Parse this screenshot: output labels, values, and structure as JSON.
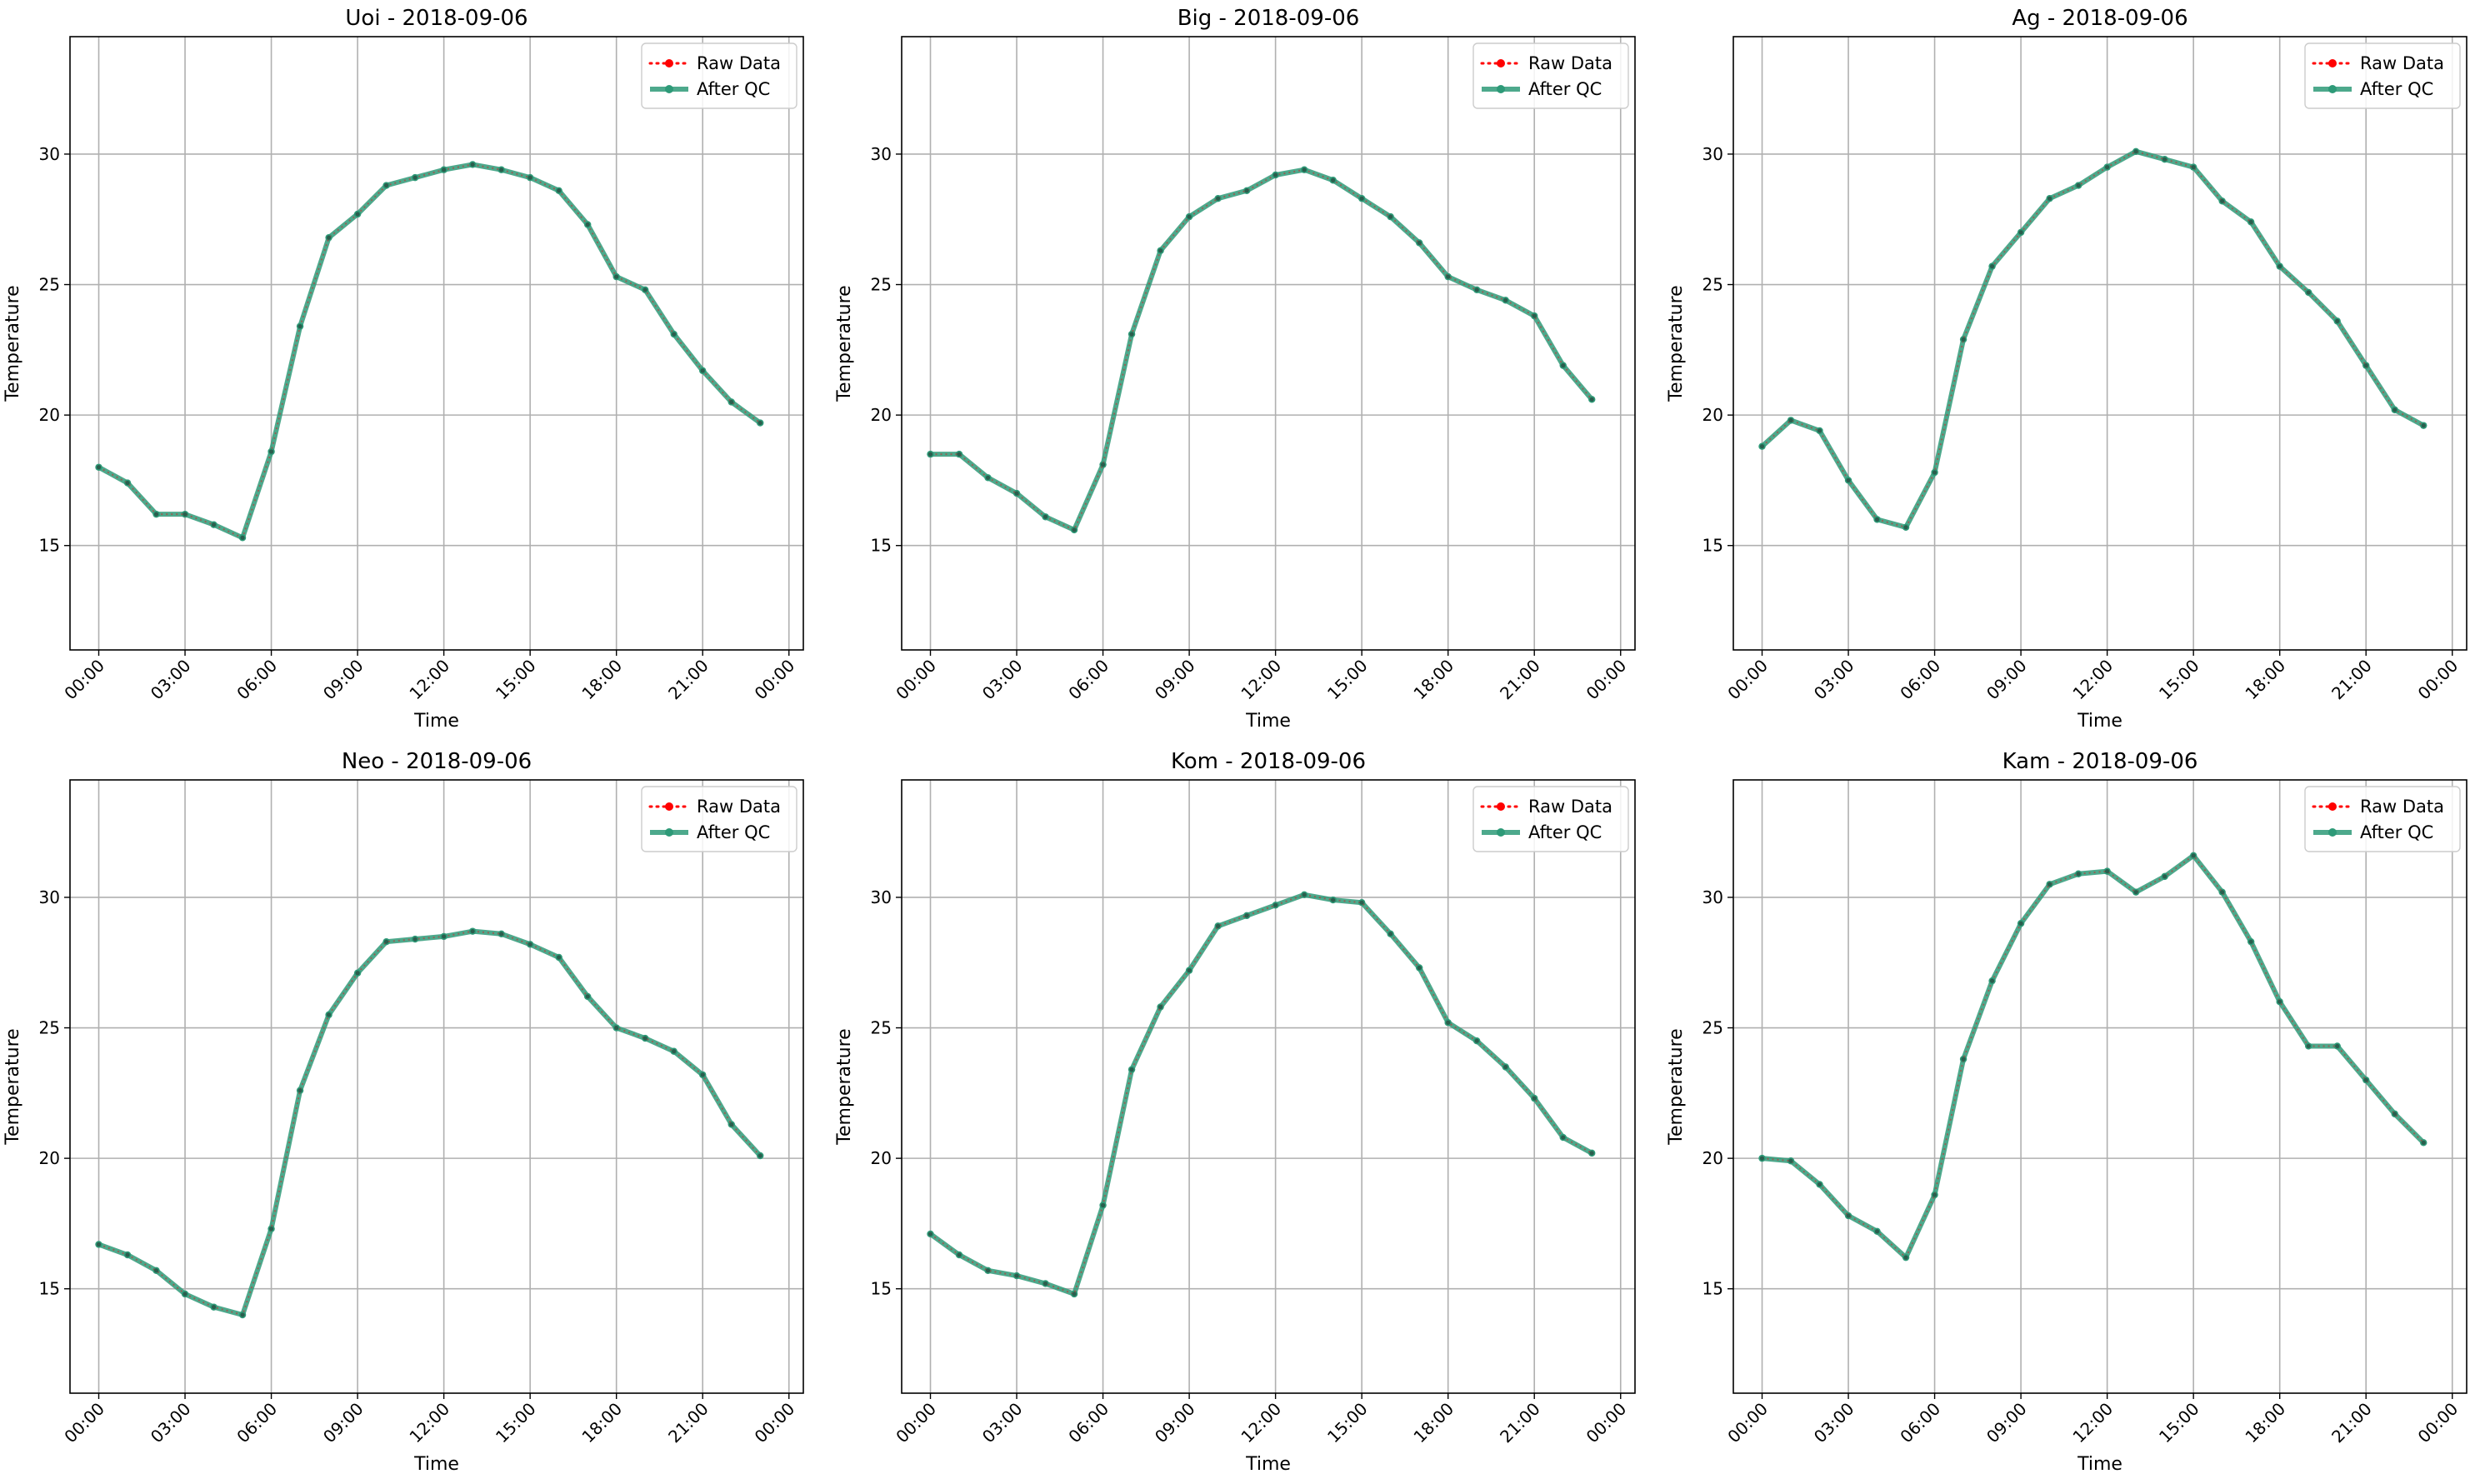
{
  "chart_data": {
    "type": "line",
    "ylim": [
      11,
      34.5
    ],
    "xlim": [
      -1.0,
      24.5
    ],
    "grid": true,
    "legend_placement": "top-right",
    "x_hours": [
      0,
      1,
      2,
      3,
      4,
      5,
      6,
      7,
      8,
      9,
      10,
      11,
      12,
      13,
      14,
      15,
      16,
      17,
      18,
      19,
      20,
      21,
      22,
      23
    ],
    "xticks": [
      {
        "value": 0,
        "label": "00:00"
      },
      {
        "value": 3,
        "label": "03:00"
      },
      {
        "value": 6,
        "label": "06:00"
      },
      {
        "value": 9,
        "label": "09:00"
      },
      {
        "value": 12,
        "label": "12:00"
      },
      {
        "value": 15,
        "label": "15:00"
      },
      {
        "value": 18,
        "label": "18:00"
      },
      {
        "value": 21,
        "label": "21:00"
      },
      {
        "value": 24,
        "label": "00:00"
      }
    ],
    "yticks": [
      15,
      20,
      25,
      30
    ],
    "xlabel": "Time",
    "ylabel": "Temperature",
    "legend": [
      {
        "label": "Raw Data",
        "color": "#ff0000",
        "style": "dotted"
      },
      {
        "label": "After QC",
        "color": "#2e9a78",
        "style": "solid"
      }
    ],
    "panels": [
      {
        "title": "Uoi - 2018-09-06",
        "raw": [
          18.0,
          17.4,
          16.2,
          16.2,
          15.8,
          15.3,
          18.6,
          23.4,
          26.8,
          27.7,
          28.8,
          29.1,
          29.4,
          29.6,
          29.4,
          29.1,
          28.6,
          27.3,
          25.3,
          24.8,
          23.1,
          21.7,
          20.5,
          19.7
        ],
        "after_qc": [
          18.0,
          17.4,
          16.2,
          16.2,
          15.8,
          15.3,
          18.6,
          23.4,
          26.8,
          27.7,
          28.8,
          29.1,
          29.4,
          29.6,
          29.4,
          29.1,
          28.6,
          27.3,
          25.3,
          24.8,
          23.1,
          21.7,
          20.5,
          19.7
        ]
      },
      {
        "title": "Big - 2018-09-06",
        "raw": [
          18.5,
          18.5,
          17.6,
          17.0,
          16.1,
          15.6,
          18.1,
          23.1,
          26.3,
          27.6,
          28.3,
          28.6,
          29.2,
          29.4,
          29.0,
          28.3,
          27.6,
          26.6,
          25.3,
          24.8,
          24.4,
          23.8,
          21.9,
          20.6
        ],
        "after_qc": [
          18.5,
          18.5,
          17.6,
          17.0,
          16.1,
          15.6,
          18.1,
          23.1,
          26.3,
          27.6,
          28.3,
          28.6,
          29.2,
          29.4,
          29.0,
          28.3,
          27.6,
          26.6,
          25.3,
          24.8,
          24.4,
          23.8,
          21.9,
          20.6
        ]
      },
      {
        "title": "Ag - 2018-09-06",
        "raw": [
          18.8,
          19.8,
          19.4,
          17.5,
          16.0,
          15.7,
          17.8,
          22.9,
          25.7,
          27.0,
          28.3,
          28.8,
          29.5,
          30.1,
          29.8,
          29.5,
          28.2,
          27.4,
          25.7,
          24.7,
          23.6,
          21.9,
          20.2,
          19.6
        ],
        "after_qc": [
          18.8,
          19.8,
          19.4,
          17.5,
          16.0,
          15.7,
          17.8,
          22.9,
          25.7,
          27.0,
          28.3,
          28.8,
          29.5,
          30.1,
          29.8,
          29.5,
          28.2,
          27.4,
          25.7,
          24.7,
          23.6,
          21.9,
          20.2,
          19.6
        ]
      },
      {
        "title": "Neo - 2018-09-06",
        "raw": [
          16.7,
          16.3,
          15.7,
          14.8,
          14.3,
          14.0,
          17.3,
          22.6,
          25.5,
          27.1,
          28.3,
          28.4,
          28.5,
          28.7,
          28.6,
          28.2,
          27.7,
          26.2,
          25.0,
          24.6,
          24.1,
          23.2,
          21.3,
          20.1
        ],
        "after_qc": [
          16.7,
          16.3,
          15.7,
          14.8,
          14.3,
          14.0,
          17.3,
          22.6,
          25.5,
          27.1,
          28.3,
          28.4,
          28.5,
          28.7,
          28.6,
          28.2,
          27.7,
          26.2,
          25.0,
          24.6,
          24.1,
          23.2,
          21.3,
          20.1
        ]
      },
      {
        "title": "Kom - 2018-09-06",
        "raw": [
          17.1,
          16.3,
          15.7,
          15.5,
          15.2,
          14.8,
          18.2,
          23.4,
          25.8,
          27.2,
          28.9,
          29.3,
          29.7,
          30.1,
          29.9,
          29.8,
          28.6,
          27.3,
          25.2,
          24.5,
          23.5,
          22.3,
          20.8,
          20.2
        ],
        "after_qc": [
          17.1,
          16.3,
          15.7,
          15.5,
          15.2,
          14.8,
          18.2,
          23.4,
          25.8,
          27.2,
          28.9,
          29.3,
          29.7,
          30.1,
          29.9,
          29.8,
          28.6,
          27.3,
          25.2,
          24.5,
          23.5,
          22.3,
          20.8,
          20.2
        ]
      },
      {
        "title": "Kam - 2018-09-06",
        "raw": [
          20.0,
          19.9,
          19.0,
          17.8,
          17.2,
          16.2,
          18.6,
          23.8,
          26.8,
          29.0,
          30.5,
          30.9,
          31.0,
          30.2,
          30.8,
          31.6,
          30.2,
          28.3,
          26.0,
          24.3,
          24.3,
          23.0,
          21.7,
          20.6
        ],
        "after_qc": [
          20.0,
          19.9,
          19.0,
          17.8,
          17.2,
          16.2,
          18.6,
          23.8,
          26.8,
          29.0,
          30.5,
          30.9,
          31.0,
          30.2,
          30.8,
          31.6,
          30.2,
          28.3,
          26.0,
          24.3,
          24.3,
          23.0,
          21.7,
          20.6
        ]
      }
    ]
  }
}
